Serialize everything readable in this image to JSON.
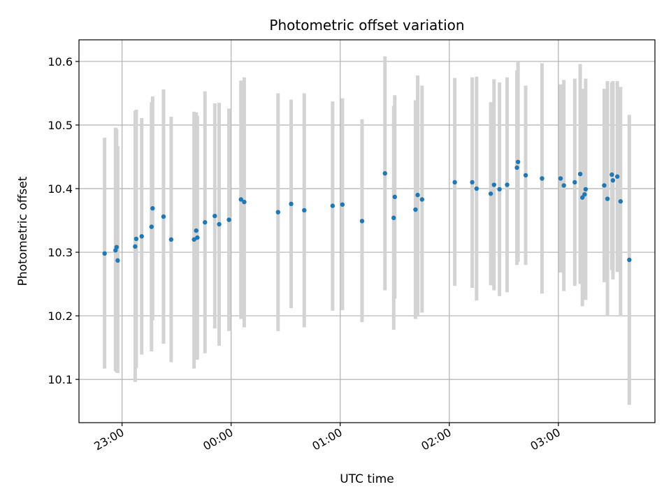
{
  "chart_data": {
    "type": "scatter",
    "title": "Photometric offset variation",
    "xlabel": "UTC time",
    "ylabel": "Photometric offset",
    "x_unit": "hours since 00:00 UTC",
    "xlim": [
      -1.395,
      3.885
    ],
    "ylim": [
      10.032,
      10.634
    ],
    "x_ticks": [
      {
        "value": -1.0,
        "label": "23:00"
      },
      {
        "value": 0.0,
        "label": "00:00"
      },
      {
        "value": 1.0,
        "label": "01:00"
      },
      {
        "value": 2.0,
        "label": "02:00"
      },
      {
        "value": 3.0,
        "label": "03:00"
      }
    ],
    "y_ticks": [
      {
        "value": 10.1,
        "label": "10.1"
      },
      {
        "value": 10.2,
        "label": "10.2"
      },
      {
        "value": 10.3,
        "label": "10.3"
      },
      {
        "value": 10.4,
        "label": "10.4"
      },
      {
        "value": 10.5,
        "label": "10.5"
      },
      {
        "value": 10.6,
        "label": "10.6"
      }
    ],
    "grid": true,
    "marker_color": "#1f77b4",
    "errorbar_color": "#d3d3d3",
    "points": [
      {
        "x": -1.16,
        "y": 10.298,
        "lo": 10.117,
        "hi": 10.48
      },
      {
        "x": -1.06,
        "y": 10.303,
        "lo": 10.113,
        "hi": 10.496
      },
      {
        "x": -1.05,
        "y": 10.308,
        "lo": 10.111,
        "hi": 10.494
      },
      {
        "x": -1.04,
        "y": 10.287,
        "lo": 10.11,
        "hi": 10.467
      },
      {
        "x": -0.88,
        "y": 10.309,
        "lo": 10.096,
        "hi": 10.522
      },
      {
        "x": -0.87,
        "y": 10.321,
        "lo": 10.118,
        "hi": 10.524
      },
      {
        "x": -0.82,
        "y": 10.325,
        "lo": 10.139,
        "hi": 10.511
      },
      {
        "x": -0.73,
        "y": 10.34,
        "lo": 10.144,
        "hi": 10.536
      },
      {
        "x": -0.72,
        "y": 10.369,
        "lo": 10.193,
        "hi": 10.545
      },
      {
        "x": -0.62,
        "y": 10.356,
        "lo": 10.156,
        "hi": 10.556
      },
      {
        "x": -0.55,
        "y": 10.32,
        "lo": 10.127,
        "hi": 10.513
      },
      {
        "x": -0.34,
        "y": 10.32,
        "lo": 10.117,
        "hi": 10.521
      },
      {
        "x": -0.32,
        "y": 10.334,
        "lo": 10.149,
        "hi": 10.52
      },
      {
        "x": -0.31,
        "y": 10.323,
        "lo": 10.131,
        "hi": 10.515
      },
      {
        "x": -0.24,
        "y": 10.347,
        "lo": 10.141,
        "hi": 10.553
      },
      {
        "x": -0.15,
        "y": 10.357,
        "lo": 10.18,
        "hi": 10.534
      },
      {
        "x": -0.11,
        "y": 10.344,
        "lo": 10.153,
        "hi": 10.535
      },
      {
        "x": -0.02,
        "y": 10.351,
        "lo": 10.176,
        "hi": 10.526
      },
      {
        "x": 0.09,
        "y": 10.383,
        "lo": 10.195,
        "hi": 10.57
      },
      {
        "x": 0.12,
        "y": 10.379,
        "lo": 10.182,
        "hi": 10.575
      },
      {
        "x": 0.43,
        "y": 10.363,
        "lo": 10.176,
        "hi": 10.55
      },
      {
        "x": 0.55,
        "y": 10.376,
        "lo": 10.212,
        "hi": 10.54
      },
      {
        "x": 0.67,
        "y": 10.366,
        "lo": 10.182,
        "hi": 10.55
      },
      {
        "x": 0.93,
        "y": 10.373,
        "lo": 10.208,
        "hi": 10.537
      },
      {
        "x": 1.02,
        "y": 10.375,
        "lo": 10.209,
        "hi": 10.542
      },
      {
        "x": 1.2,
        "y": 10.349,
        "lo": 10.19,
        "hi": 10.509
      },
      {
        "x": 1.41,
        "y": 10.424,
        "lo": 10.24,
        "hi": 10.608
      },
      {
        "x": 1.49,
        "y": 10.354,
        "lo": 10.178,
        "hi": 10.53
      },
      {
        "x": 1.5,
        "y": 10.387,
        "lo": 10.227,
        "hi": 10.547
      },
      {
        "x": 1.69,
        "y": 10.367,
        "lo": 10.195,
        "hi": 10.539
      },
      {
        "x": 1.71,
        "y": 10.39,
        "lo": 10.201,
        "hi": 10.578
      },
      {
        "x": 1.75,
        "y": 10.383,
        "lo": 10.205,
        "hi": 10.562
      },
      {
        "x": 2.05,
        "y": 10.41,
        "lo": 10.247,
        "hi": 10.574
      },
      {
        "x": 2.21,
        "y": 10.41,
        "lo": 10.244,
        "hi": 10.575
      },
      {
        "x": 2.25,
        "y": 10.4,
        "lo": 10.224,
        "hi": 10.576
      },
      {
        "x": 2.38,
        "y": 10.392,
        "lo": 10.248,
        "hi": 10.536
      },
      {
        "x": 2.41,
        "y": 10.406,
        "lo": 10.24,
        "hi": 10.572
      },
      {
        "x": 2.46,
        "y": 10.399,
        "lo": 10.231,
        "hi": 10.567
      },
      {
        "x": 2.53,
        "y": 10.406,
        "lo": 10.237,
        "hi": 10.575
      },
      {
        "x": 2.62,
        "y": 10.433,
        "lo": 10.28,
        "hi": 10.586
      },
      {
        "x": 2.63,
        "y": 10.442,
        "lo": 10.285,
        "hi": 10.599
      },
      {
        "x": 2.7,
        "y": 10.421,
        "lo": 10.28,
        "hi": 10.562
      },
      {
        "x": 2.85,
        "y": 10.416,
        "lo": 10.235,
        "hi": 10.597
      },
      {
        "x": 3.02,
        "y": 10.416,
        "lo": 10.268,
        "hi": 10.564
      },
      {
        "x": 3.05,
        "y": 10.405,
        "lo": 10.239,
        "hi": 10.571
      },
      {
        "x": 3.15,
        "y": 10.41,
        "lo": 10.247,
        "hi": 10.573
      },
      {
        "x": 3.2,
        "y": 10.423,
        "lo": 10.25,
        "hi": 10.596
      },
      {
        "x": 3.22,
        "y": 10.386,
        "lo": 10.215,
        "hi": 10.557
      },
      {
        "x": 3.24,
        "y": 10.391,
        "lo": 10.23,
        "hi": 10.552
      },
      {
        "x": 3.25,
        "y": 10.399,
        "lo": 10.225,
        "hi": 10.573
      },
      {
        "x": 3.42,
        "y": 10.405,
        "lo": 10.253,
        "hi": 10.557
      },
      {
        "x": 3.45,
        "y": 10.384,
        "lo": 10.199,
        "hi": 10.569
      },
      {
        "x": 3.49,
        "y": 10.422,
        "lo": 10.272,
        "hi": 10.567
      },
      {
        "x": 3.5,
        "y": 10.413,
        "lo": 10.257,
        "hi": 10.569
      },
      {
        "x": 3.54,
        "y": 10.419,
        "lo": 10.269,
        "hi": 10.569
      },
      {
        "x": 3.57,
        "y": 10.38,
        "lo": 10.2,
        "hi": 10.56
      },
      {
        "x": 3.65,
        "y": 10.288,
        "lo": 10.06,
        "hi": 10.516
      }
    ]
  }
}
